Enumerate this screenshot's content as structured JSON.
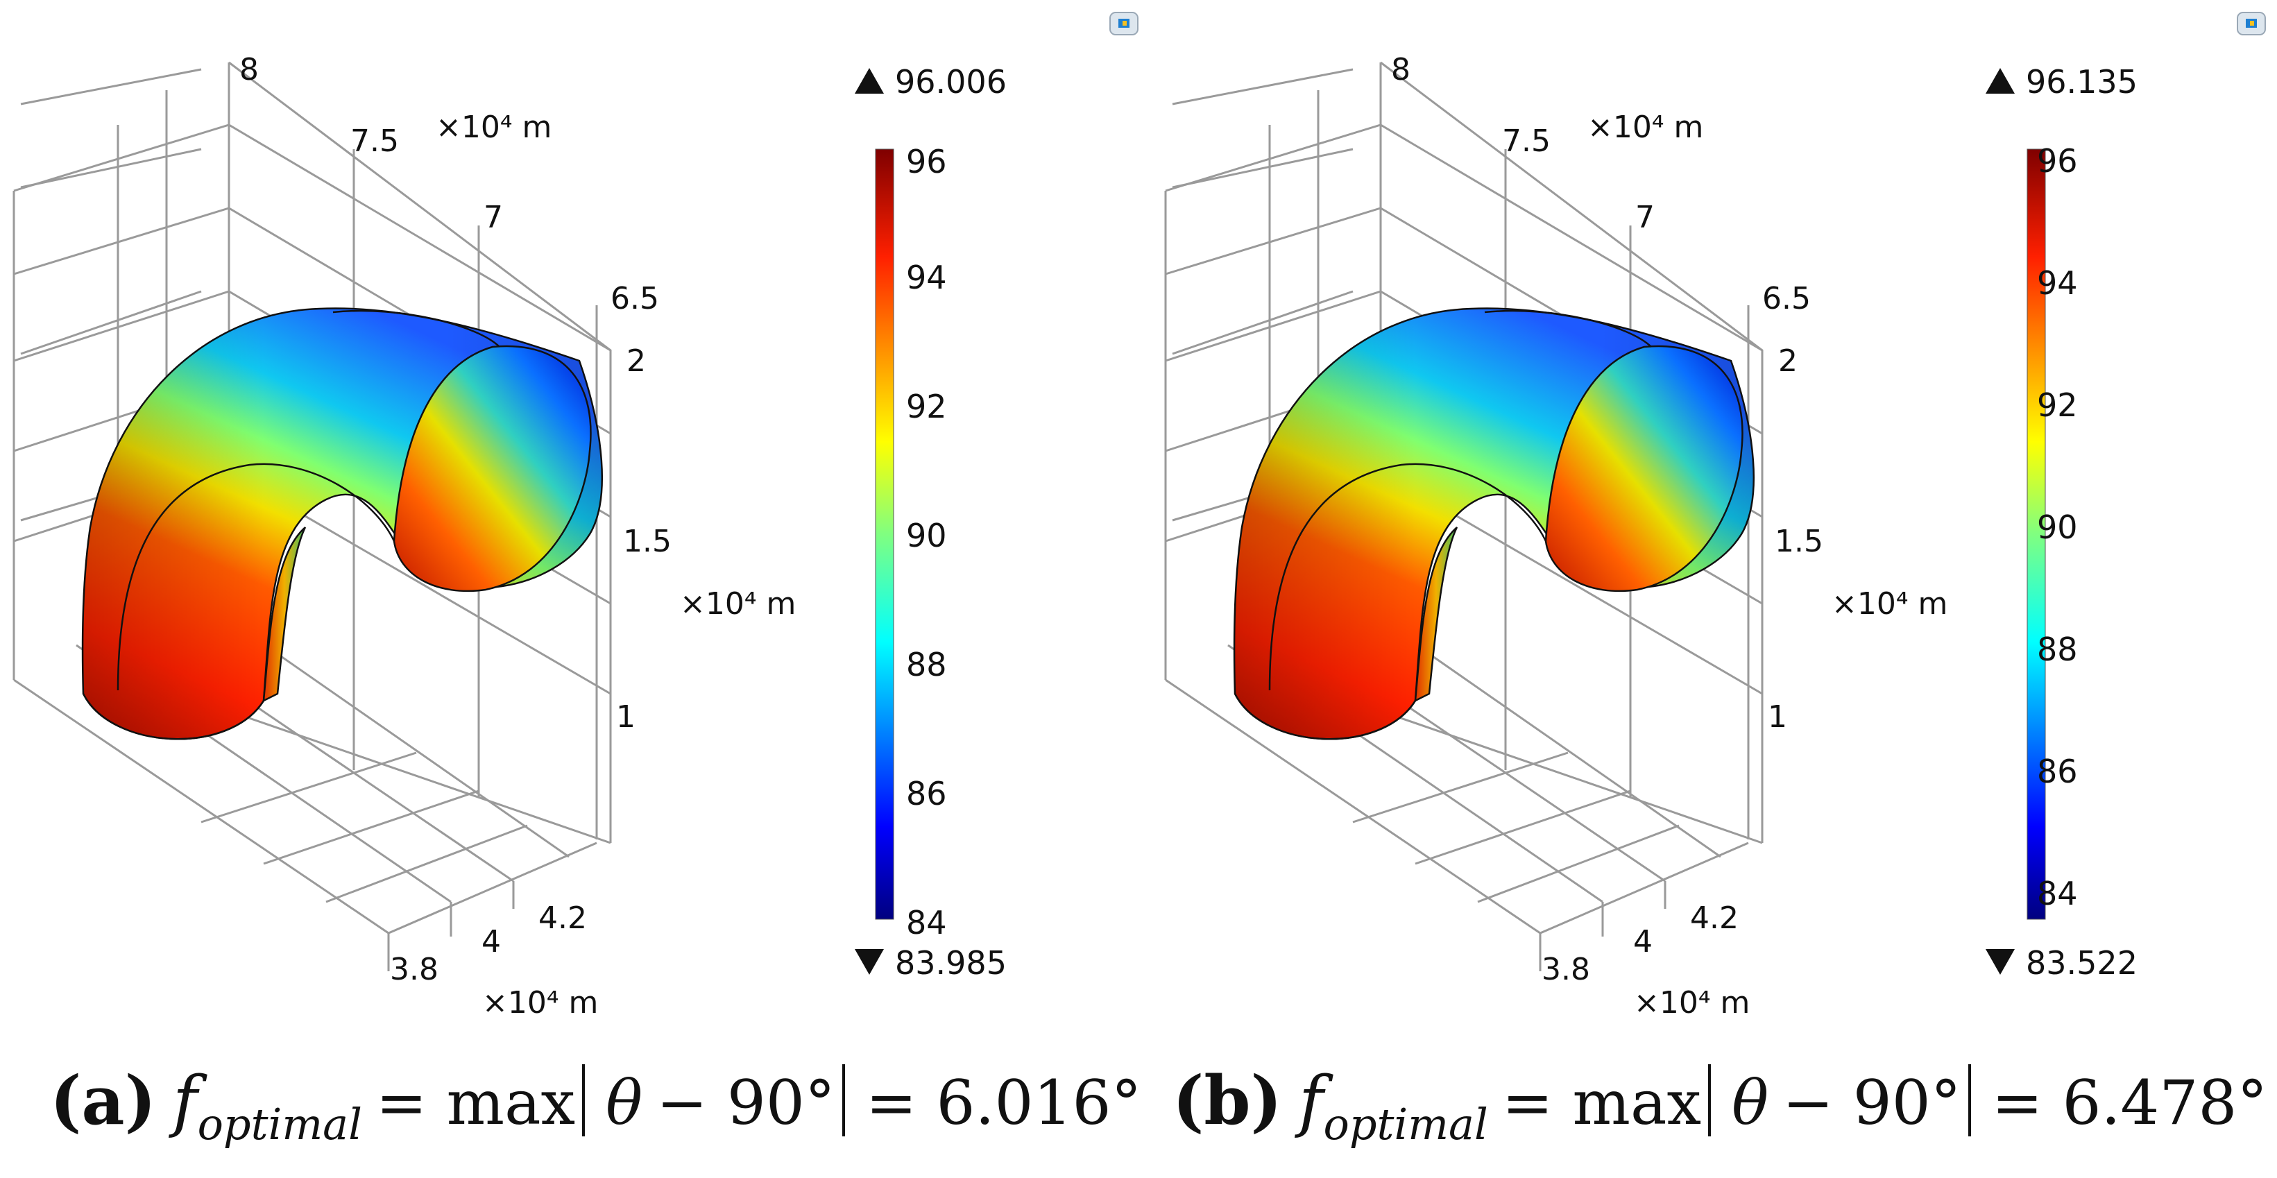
{
  "panels": [
    {
      "id": "a",
      "caption": {
        "label": "(a)",
        "f": "f",
        "sub": "optimal",
        "eq1": "= max",
        "theta": "θ",
        "eq2": "− 90°",
        "eq3": "= 6.016°"
      },
      "colorbar": {
        "max_label": "96.006",
        "min_label": "83.985",
        "ticks": [
          "96",
          "94",
          "92",
          "90",
          "88",
          "86",
          "84"
        ],
        "range": [
          84,
          96
        ]
      },
      "axes": {
        "z_ticks": [
          "8",
          "7.5",
          "7",
          "6.5"
        ],
        "z_unit": "×10⁴ m",
        "y_ticks": [
          "2",
          "1.5",
          "1"
        ],
        "y_unit": "×10⁴ m",
        "x_ticks": [
          "4.2",
          "4",
          "3.8"
        ],
        "x_unit": "×10⁴ m"
      }
    },
    {
      "id": "b",
      "caption": {
        "label": "(b)",
        "f": "f",
        "sub": "optimal",
        "eq1": "= max",
        "theta": "θ",
        "eq2": "− 90°",
        "eq3": "= 6.478°"
      },
      "colorbar": {
        "max_label": "96.135",
        "min_label": "83.522",
        "ticks": [
          "96",
          "94",
          "92",
          "90",
          "88",
          "86",
          "84"
        ],
        "range": [
          83.522,
          96.135
        ]
      },
      "axes": {
        "z_ticks": [
          "8",
          "7.5",
          "7",
          "6.5"
        ],
        "z_unit": "×10⁴ m",
        "y_ticks": [
          "2",
          "1.5",
          "1"
        ],
        "y_unit": "×10⁴ m",
        "x_ticks": [
          "4.2",
          "4",
          "3.8"
        ],
        "x_unit": "×10⁴ m"
      }
    }
  ],
  "chart_data": [
    {
      "type": "heatmap",
      "description_visible": "3D surface plot of a pipe elbow colored by angle",
      "colorbar": {
        "min": 83.985,
        "max": 96.006,
        "ticks": [
          96,
          94,
          92,
          90,
          88,
          86,
          84
        ]
      },
      "axes": {
        "z_ticks": [
          8,
          7.5,
          7,
          6.5
        ],
        "y_ticks": [
          2,
          1.5,
          1
        ],
        "x_ticks": [
          4.2,
          4,
          3.8
        ],
        "unit": "×10⁴ m"
      },
      "caption_value": "6.016°"
    },
    {
      "type": "heatmap",
      "description_visible": "3D surface plot of a pipe elbow colored by angle",
      "colorbar": {
        "min": 83.522,
        "max": 96.135,
        "ticks": [
          96,
          94,
          92,
          90,
          88,
          86,
          84
        ]
      },
      "axes": {
        "z_ticks": [
          8,
          7.5,
          7,
          6.5
        ],
        "y_ticks": [
          2,
          1.5,
          1
        ],
        "x_ticks": [
          4.2,
          4,
          3.8
        ],
        "unit": "×10⁴ m"
      },
      "caption_value": "6.478°"
    }
  ],
  "colors": {
    "jet_dark_red": "#7f0000",
    "jet_red": "#ff2000",
    "jet_yellow": "#ffff00",
    "jet_cyan": "#00ffff",
    "jet_blue": "#0000ff",
    "jet_dark_blue": "#00007f",
    "grid": "#9a9a9a"
  }
}
